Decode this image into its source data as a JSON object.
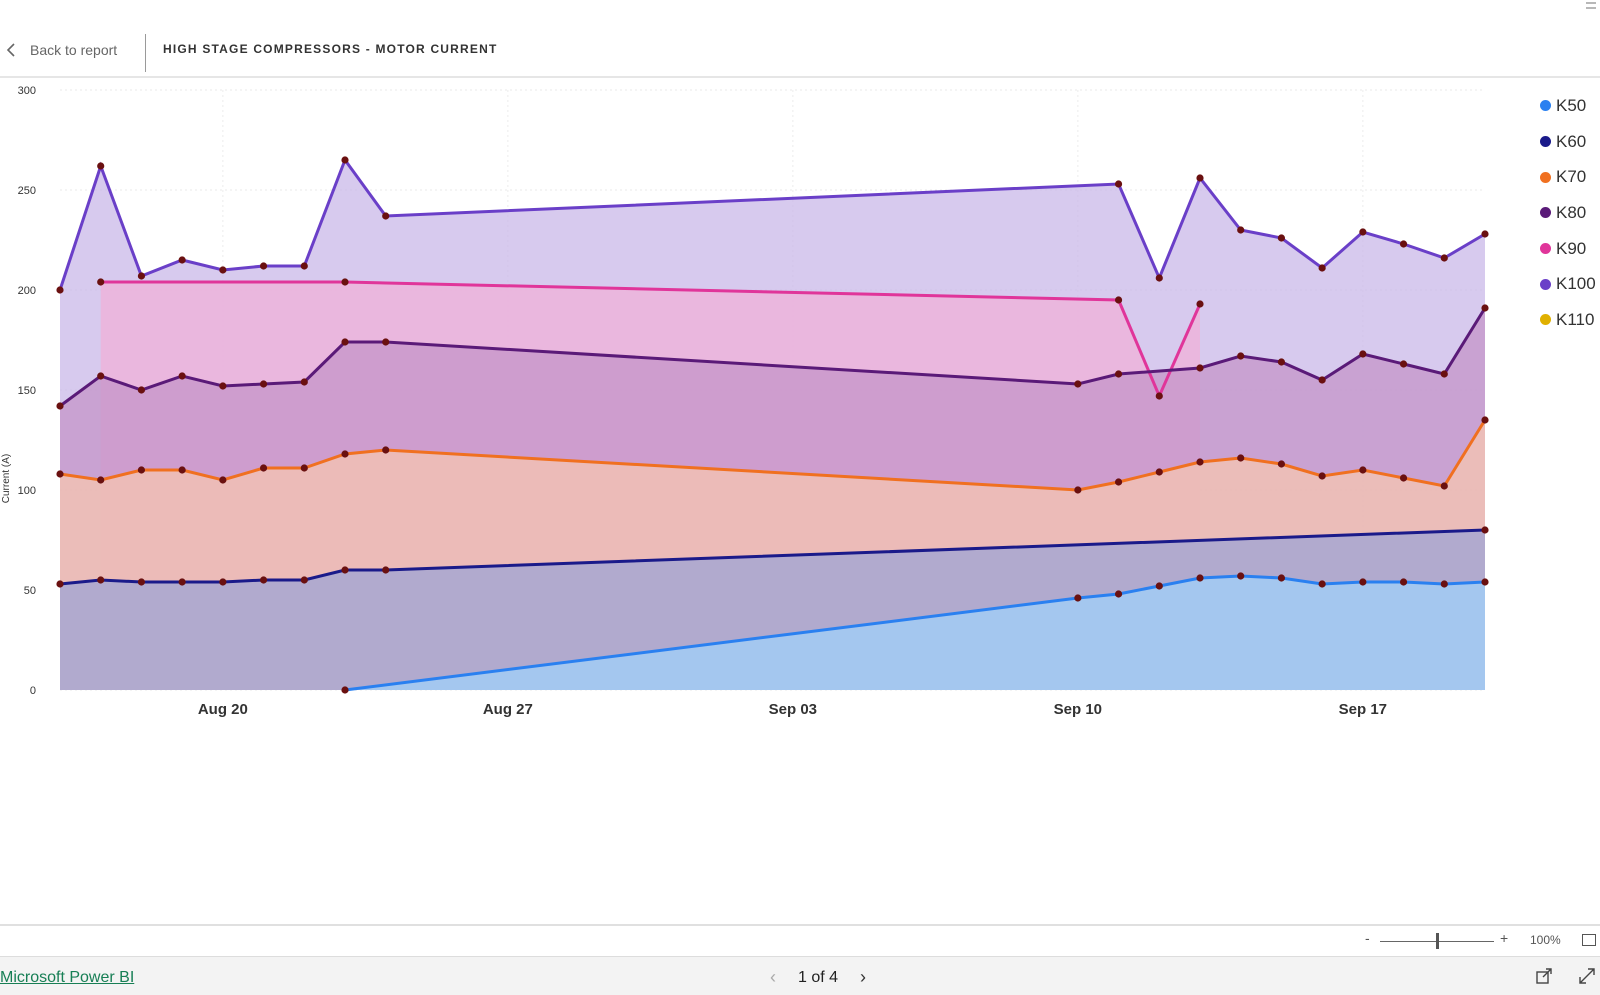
{
  "header": {
    "back_label": "Back to report",
    "title": "HIGH STAGE COMPRESSORS - MOTOR CURRENT"
  },
  "chart_data": {
    "type": "area",
    "title": "",
    "xlabel": "",
    "ylabel": "Current (A)",
    "ylim": [
      0,
      300
    ],
    "y_ticks": [
      "0",
      "50",
      "100",
      "150",
      "200",
      "250",
      "300"
    ],
    "x_ticks": [
      {
        "label": "Aug 20",
        "day": 20
      },
      {
        "label": "Aug 27",
        "day": 27
      },
      {
        "label": "Sep 03",
        "day": 34
      },
      {
        "label": "Sep 10",
        "day": 41
      },
      {
        "label": "Sep 17",
        "day": 48
      }
    ],
    "grid": true,
    "legend_position": "right",
    "series": [
      {
        "name": "K100",
        "color": "#6a3fc8",
        "fill": "#c9b8e8",
        "points": [
          [
            16,
            200
          ],
          [
            17,
            262
          ],
          [
            18,
            207
          ],
          [
            19,
            215
          ],
          [
            20,
            210
          ],
          [
            21,
            212
          ],
          [
            22,
            212
          ],
          [
            23,
            265
          ],
          [
            24,
            237
          ],
          [
            42,
            253
          ],
          [
            43,
            206
          ],
          [
            44,
            256
          ],
          [
            45,
            230
          ],
          [
            46,
            226
          ],
          [
            47,
            211
          ],
          [
            48,
            229
          ],
          [
            49,
            223
          ],
          [
            50,
            216
          ],
          [
            51,
            228
          ]
        ]
      },
      {
        "name": "K90",
        "color": "#e0359a",
        "fill": "#f0b0d8",
        "points": [
          [
            17,
            204
          ],
          [
            23,
            204
          ],
          [
            42,
            195
          ],
          [
            43,
            147
          ],
          [
            44,
            193
          ]
        ]
      },
      {
        "name": "K80",
        "color": "#5a1a78",
        "fill": "#c494c8",
        "points": [
          [
            16,
            142
          ],
          [
            17,
            157
          ],
          [
            18,
            150
          ],
          [
            19,
            157
          ],
          [
            20,
            152
          ],
          [
            21,
            153
          ],
          [
            22,
            154
          ],
          [
            23,
            174
          ],
          [
            24,
            174
          ],
          [
            41,
            153
          ],
          [
            42,
            158
          ],
          [
            44,
            161
          ],
          [
            45,
            167
          ],
          [
            46,
            164
          ],
          [
            47,
            155
          ],
          [
            48,
            168
          ],
          [
            49,
            163
          ],
          [
            50,
            158
          ],
          [
            51,
            191
          ]
        ]
      },
      {
        "name": "K70",
        "color": "#f07020",
        "fill": "#f5c6b0",
        "points": [
          [
            16,
            108
          ],
          [
            17,
            105
          ],
          [
            18,
            110
          ],
          [
            19,
            110
          ],
          [
            20,
            105
          ],
          [
            21,
            111
          ],
          [
            22,
            111
          ],
          [
            23,
            118
          ],
          [
            24,
            120
          ],
          [
            41,
            100
          ],
          [
            42,
            104
          ],
          [
            43,
            109
          ],
          [
            44,
            114
          ],
          [
            45,
            116
          ],
          [
            46,
            113
          ],
          [
            47,
            107
          ],
          [
            48,
            110
          ],
          [
            49,
            106
          ],
          [
            50,
            102
          ],
          [
            51,
            135
          ]
        ]
      },
      {
        "name": "K60",
        "color": "#1a1a8a",
        "fill": "#9ea4d6",
        "points": [
          [
            16,
            53
          ],
          [
            17,
            55
          ],
          [
            18,
            54
          ],
          [
            19,
            54
          ],
          [
            20,
            54
          ],
          [
            21,
            55
          ],
          [
            22,
            55
          ],
          [
            23,
            60
          ],
          [
            24,
            60
          ],
          [
            51,
            80
          ]
        ]
      },
      {
        "name": "K50",
        "color": "#2a80f0",
        "fill": "#a0d0fa",
        "points": [
          [
            23,
            0
          ],
          [
            41,
            46
          ],
          [
            42,
            48
          ],
          [
            43,
            52
          ],
          [
            44,
            56
          ],
          [
            45,
            57
          ],
          [
            46,
            56
          ],
          [
            47,
            53
          ],
          [
            48,
            54
          ],
          [
            49,
            54
          ],
          [
            50,
            53
          ],
          [
            51,
            54
          ]
        ]
      },
      {
        "name": "K110",
        "color": "#e0b000",
        "fill": "#f5d870",
        "points": []
      }
    ],
    "legend_order": [
      "K50",
      "K60",
      "K70",
      "K80",
      "K90",
      "K100",
      "K110"
    ],
    "marker_color": "#6a1010"
  },
  "legend": [
    {
      "label": "K50",
      "color": "#2a80f0"
    },
    {
      "label": "K60",
      "color": "#1a1a8a"
    },
    {
      "label": "K70",
      "color": "#f07020"
    },
    {
      "label": "K80",
      "color": "#5a1a78"
    },
    {
      "label": "K90",
      "color": "#e0359a"
    },
    {
      "label": "K100",
      "color": "#6a3fc8"
    },
    {
      "label": "K110",
      "color": "#e0b000"
    }
  ],
  "zoom": {
    "minus": "-",
    "plus": "+",
    "level": "100%",
    "level_fraction": 0.5
  },
  "footer": {
    "brand_link": "Microsoft Power BI",
    "page_indicator": "1 of 4",
    "prev": "‹",
    "next": "›"
  }
}
